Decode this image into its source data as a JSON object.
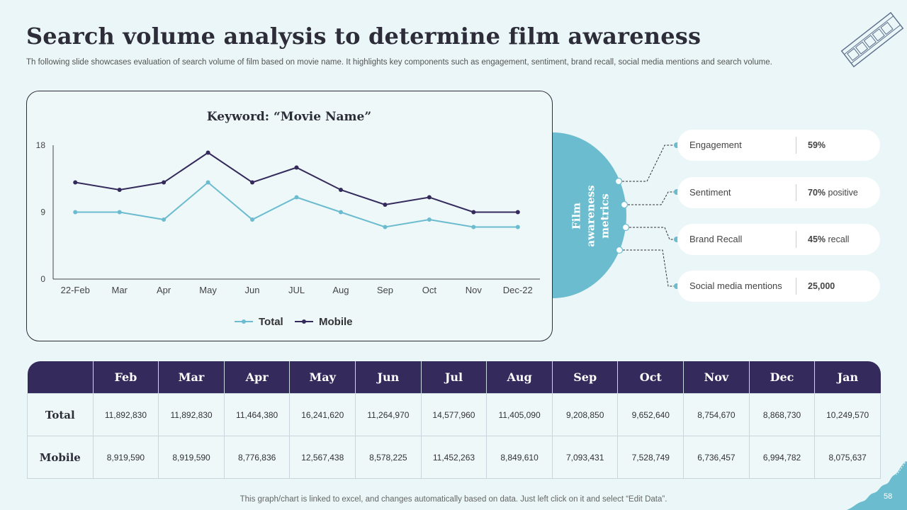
{
  "header": {
    "title": "Search volume analysis to determine film awareness",
    "subtitle": "Th following slide showcases evaluation of search volume of film based on movie name. It highlights key components such as engagement, sentiment, brand recall, social media mentions and search volume."
  },
  "chart_data": {
    "type": "line",
    "title": "Keyword: “Movie Name”",
    "categories": [
      "22-Feb",
      "Mar",
      "Apr",
      "May",
      "Jun",
      "JUL",
      "Aug",
      "Sep",
      "Oct",
      "Nov",
      "Dec-22"
    ],
    "ylim": [
      0,
      18
    ],
    "yticks": [
      0,
      9,
      18
    ],
    "legend_position": "bottom",
    "series": [
      {
        "name": "Total",
        "color": "#6bbccf",
        "values": [
          9,
          9,
          8,
          13,
          8,
          11,
          9,
          7,
          8,
          7,
          7
        ]
      },
      {
        "name": "Mobile",
        "color": "#342a5b",
        "values": [
          13,
          12,
          13,
          17,
          13,
          15,
          12,
          10,
          11,
          9,
          9
        ]
      }
    ]
  },
  "metrics_panel": {
    "label": "Film awareness metrics",
    "items": [
      {
        "name": "Engagement",
        "value_bold": "59%",
        "value_rest": ""
      },
      {
        "name": "Sentiment",
        "value_bold": "70%",
        "value_rest": " positive"
      },
      {
        "name": "Brand Recall",
        "value_bold": "45%",
        "value_rest": " recall"
      },
      {
        "name": "Social media mentions",
        "value_bold": "25,000",
        "value_rest": ""
      }
    ]
  },
  "table": {
    "columns": [
      "",
      "Feb",
      "Mar",
      "Apr",
      "May",
      "Jun",
      "Jul",
      "Aug",
      "Sep",
      "Oct",
      "Nov",
      "Dec",
      "Jan"
    ],
    "rows": [
      {
        "label": "Total",
        "cells": [
          "11,892,830",
          "11,892,830",
          "11,464,380",
          "16,241,620",
          "11,264,970",
          "14,577,960",
          "11,405,090",
          "9,208,850",
          "9,652,640",
          "8,754,670",
          "8,868,730",
          "10,249,570"
        ]
      },
      {
        "label": "Mobile",
        "cells": [
          "8,919,590",
          "8,919,590",
          "8,776,836",
          "12,567,438",
          "8,578,225",
          "11,452,263",
          "8,849,610",
          "7,093,431",
          "7,528,749",
          "6,736,457",
          "6,994,782",
          "8,075,637"
        ]
      }
    ]
  },
  "footer": {
    "note": "This graph/chart is linked to excel, and changes automatically based on data. Just left click on it and select “Edit Data”.",
    "page_number": "58"
  },
  "colors": {
    "accent_teal": "#6bbccf",
    "navy": "#342a5b"
  }
}
